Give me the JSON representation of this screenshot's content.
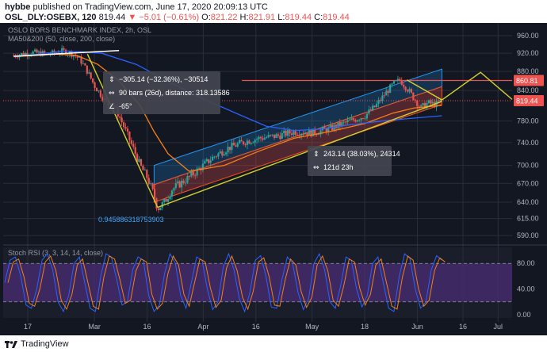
{
  "header": {
    "user": "hybbe",
    "published": "published on TradingView.com, June 17, 2020 20:09:13 UTC",
    "symbol": "OSL_DLY:OSEBX, 120",
    "last": "819.44",
    "change": "▼ −5.01 (−0.61%)",
    "o_label": "O:",
    "o": "821.22",
    "h_label": "H:",
    "h": "821.91",
    "l_label": "L:",
    "l": "819.44",
    "c_label": "C:",
    "c": "819.44"
  },
  "footer": {
    "brand": "TradingView"
  },
  "colors": {
    "bg": "#131722",
    "grid": "#2a2e39",
    "text": "#b2b5be",
    "up": "#26a69a",
    "down": "#ef5350",
    "ma50": "#f57f17",
    "ma200": "#2962ff",
    "channel": "#2196f3",
    "lower_band": "#f4511e",
    "yellow": "#d4d12c",
    "stoch_bg": "#4a2c74"
  },
  "chart_data": {
    "type": "candlestick",
    "title": "OSLO BORS BENCHMARK INDEX, 2h, OSL",
    "indicator": "MA50&200 (50, close, 200, close)",
    "x_tick_labels": [
      "17",
      "Mar",
      "16",
      "Apr",
      "16",
      "May",
      "18",
      "Jun",
      "16",
      "Jul",
      "20"
    ],
    "y_tick_labels": [
      "960.00",
      "920.00",
      "880.00",
      "840.00",
      "780.00",
      "740.00",
      "700.00",
      "670.00",
      "640.00",
      "615.00",
      "590.00"
    ],
    "y_ticks": [
      960,
      920,
      880,
      840,
      780,
      740,
      700,
      670,
      640,
      615,
      590
    ],
    "y_range": [
      580,
      975
    ],
    "y_scale": "log",
    "price_labels": {
      "resistance": "860.81",
      "last": "819.44"
    },
    "resistance_level": 860.81,
    "last_price": 819.44,
    "price_path": [
      {
        "d": 0,
        "y": 915
      },
      {
        "d": 5,
        "y": 922
      },
      {
        "d": 10,
        "y": 918
      },
      {
        "d": 14,
        "y": 925
      },
      {
        "d": 17,
        "y": 918
      },
      {
        "d": 19,
        "y": 905
      },
      {
        "d": 21,
        "y": 880
      },
      {
        "d": 23,
        "y": 850
      },
      {
        "d": 25,
        "y": 830
      },
      {
        "d": 27,
        "y": 810
      },
      {
        "d": 28,
        "y": 815
      },
      {
        "d": 30,
        "y": 790
      },
      {
        "d": 32,
        "y": 760
      },
      {
        "d": 34,
        "y": 730
      },
      {
        "d": 36,
        "y": 700
      },
      {
        "d": 38,
        "y": 680
      },
      {
        "d": 39,
        "y": 665
      },
      {
        "d": 40,
        "y": 650
      },
      {
        "d": 41,
        "y": 630
      },
      {
        "d": 43,
        "y": 640
      },
      {
        "d": 45,
        "y": 660
      },
      {
        "d": 47,
        "y": 668
      },
      {
        "d": 50,
        "y": 680
      },
      {
        "d": 53,
        "y": 695
      },
      {
        "d": 57,
        "y": 715
      },
      {
        "d": 61,
        "y": 730
      },
      {
        "d": 66,
        "y": 742
      },
      {
        "d": 70,
        "y": 748
      },
      {
        "d": 75,
        "y": 752
      },
      {
        "d": 80,
        "y": 760
      },
      {
        "d": 85,
        "y": 758
      },
      {
        "d": 90,
        "y": 765
      },
      {
        "d": 95,
        "y": 778
      },
      {
        "d": 100,
        "y": 790
      },
      {
        "d": 103,
        "y": 808
      },
      {
        "d": 106,
        "y": 835
      },
      {
        "d": 108,
        "y": 852
      },
      {
        "d": 110,
        "y": 862
      },
      {
        "d": 112,
        "y": 845
      },
      {
        "d": 114,
        "y": 825
      },
      {
        "d": 116,
        "y": 805
      },
      {
        "d": 118,
        "y": 815
      },
      {
        "d": 120,
        "y": 812
      },
      {
        "d": 122,
        "y": 819.44
      }
    ],
    "ma50": [
      {
        "d": 0,
        "y": 912
      },
      {
        "d": 12,
        "y": 918
      },
      {
        "d": 18,
        "y": 915
      },
      {
        "d": 24,
        "y": 895
      },
      {
        "d": 30,
        "y": 860
      },
      {
        "d": 36,
        "y": 810
      },
      {
        "d": 40,
        "y": 760
      },
      {
        "d": 44,
        "y": 720
      },
      {
        "d": 50,
        "y": 690
      },
      {
        "d": 60,
        "y": 700
      },
      {
        "d": 70,
        "y": 725
      },
      {
        "d": 80,
        "y": 748
      },
      {
        "d": 90,
        "y": 760
      },
      {
        "d": 100,
        "y": 775
      },
      {
        "d": 108,
        "y": 795
      },
      {
        "d": 114,
        "y": 805
      },
      {
        "d": 122,
        "y": 810
      }
    ],
    "ma200": [
      {
        "d": 0,
        "y": 912
      },
      {
        "d": 15,
        "y": 925
      },
      {
        "d": 25,
        "y": 920
      },
      {
        "d": 35,
        "y": 895
      },
      {
        "d": 45,
        "y": 855
      },
      {
        "d": 55,
        "y": 820
      },
      {
        "d": 65,
        "y": 790
      },
      {
        "d": 72,
        "y": 770
      },
      {
        "d": 80,
        "y": 762
      },
      {
        "d": 88,
        "y": 765
      },
      {
        "d": 95,
        "y": 772
      },
      {
        "d": 105,
        "y": 780
      },
      {
        "d": 115,
        "y": 786
      },
      {
        "d": 122,
        "y": 790
      }
    ],
    "annotations": {
      "box1_line1": "−305.14 (−32.36%), −30514",
      "box1_line2": "90 bars (26d), distance: 318.13586",
      "box1_line3": "-65°",
      "box2_line1": "243.14 (38.03%), 24314",
      "box2_line2": "121d 23h",
      "fib_label": "0.945886318753903"
    },
    "stoch": {
      "title": "Stoch RSI (3, 3, 14, 14, close)",
      "y_tick_labels": [
        "80.00",
        "40.00",
        "0.00"
      ],
      "y_ticks": [
        80,
        40,
        0
      ],
      "range": [
        -5,
        105
      ],
      "band": [
        20,
        80
      ],
      "k": [
        50,
        85,
        90,
        60,
        15,
        10,
        40,
        85,
        95,
        70,
        20,
        5,
        30,
        80,
        90,
        50,
        10,
        5,
        60,
        95,
        90,
        55,
        15,
        20,
        70,
        90,
        85,
        30,
        5,
        15,
        65,
        95,
        80,
        30,
        10,
        50,
        90,
        85,
        40,
        8,
        20,
        75,
        95,
        70,
        25,
        5,
        35,
        85,
        92,
        60,
        12,
        10,
        55,
        90,
        80,
        35,
        8,
        25,
        80,
        95,
        70,
        20,
        10,
        45,
        90,
        85,
        40,
        12,
        30,
        80,
        90,
        50,
        10,
        5,
        60,
        95,
        88,
        40,
        10,
        20,
        70,
        92,
        85
      ]
    }
  }
}
